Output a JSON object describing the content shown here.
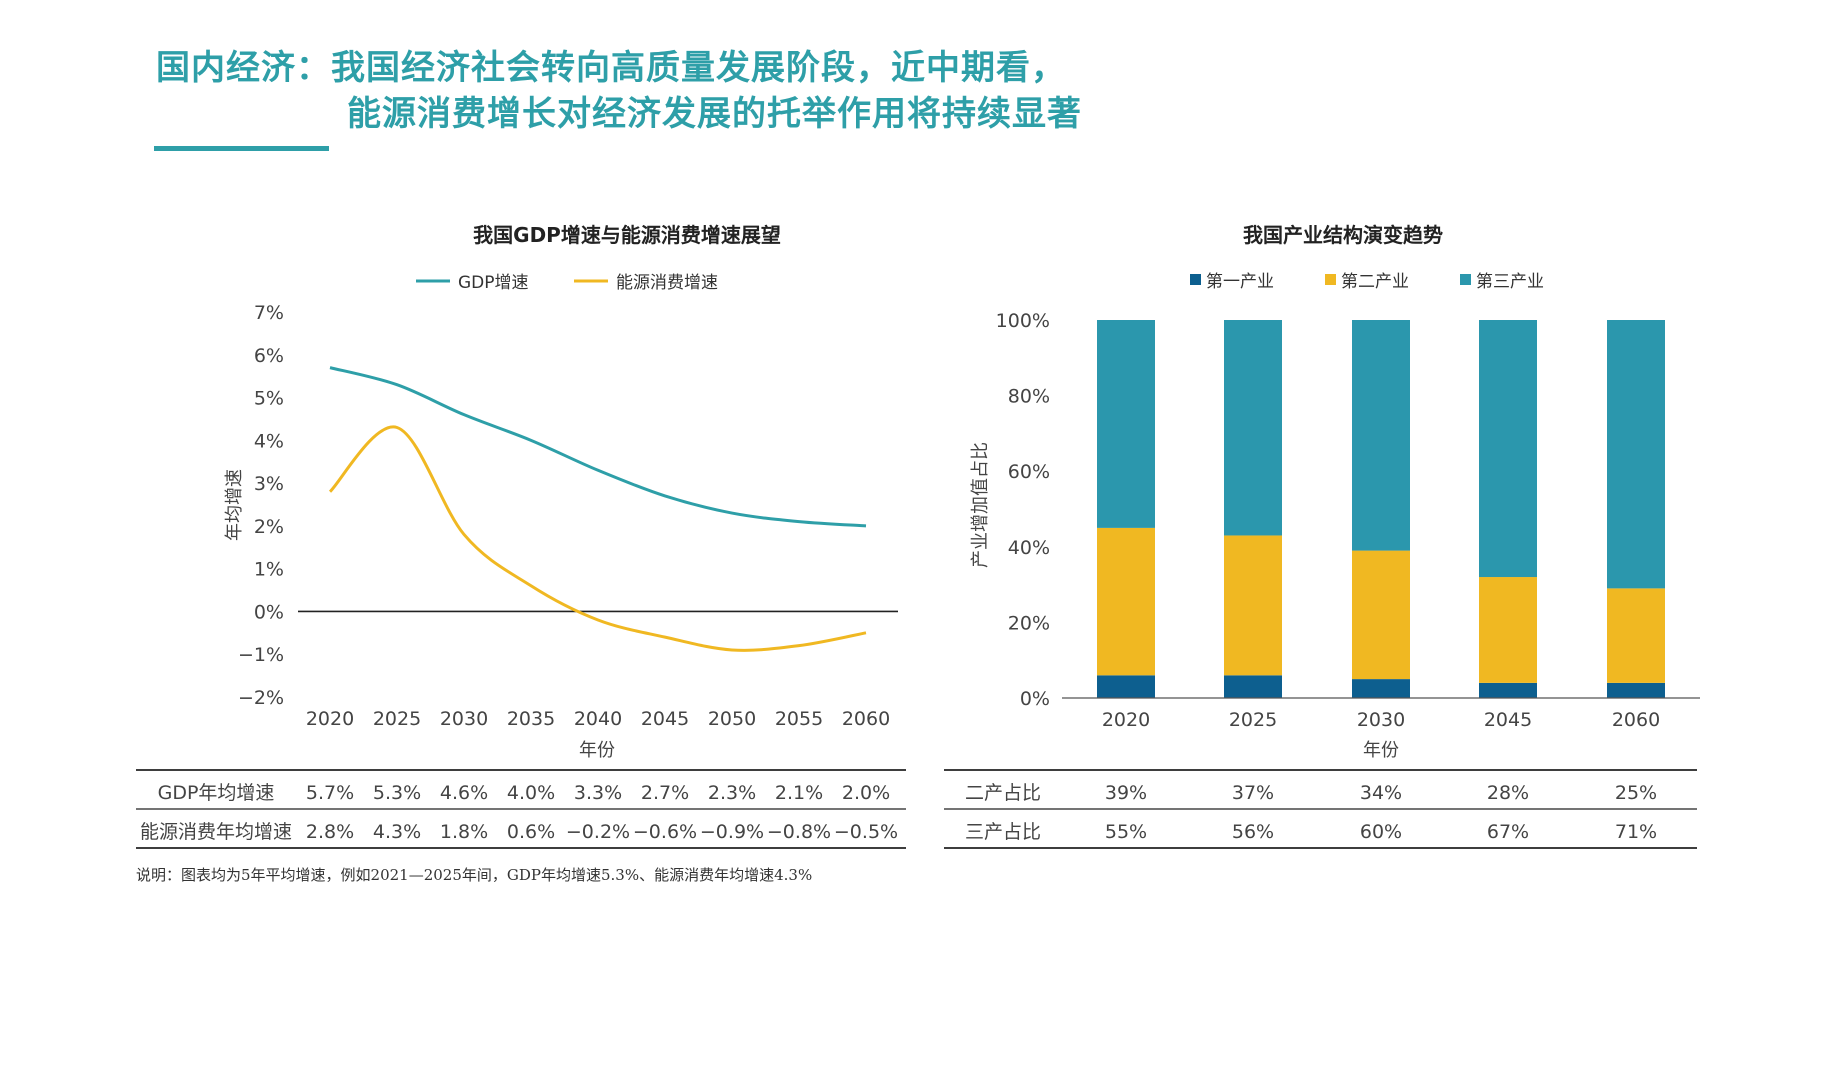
{
  "page": {
    "title_line1": "国内经济：我国经济社会转向高质量发展阶段，近中期看，",
    "title_line2": "能源消费增长对经济发展的托举作用将持续显著",
    "note": "说明：图表均为5年平均增速，例如2021—2025年间，GDP年均增速5.3%、能源消费年均增速4.3%",
    "accent_color": "#2e9fa8"
  },
  "chart_data": [
    {
      "type": "line",
      "title": "我国GDP增速与能源消费增速展望",
      "xlabel": "年份",
      "ylabel": "年均增速",
      "x": [
        "2020",
        "2025",
        "2030",
        "2035",
        "2040",
        "2045",
        "2050",
        "2055",
        "2060"
      ],
      "y_ticks": [
        "7%",
        "6%",
        "5%",
        "4%",
        "3%",
        "2%",
        "1%",
        "0%",
        "−1%",
        "−2%"
      ],
      "ylim": [
        -2,
        7
      ],
      "legend_position": "top",
      "series": [
        {
          "name": "GDP增速",
          "color": "#2e9fa8",
          "values": [
            5.7,
            5.3,
            4.6,
            4.0,
            3.3,
            2.7,
            2.3,
            2.1,
            2.0
          ]
        },
        {
          "name": "能源消费增速",
          "color": "#f0b822",
          "values": [
            2.8,
            4.3,
            1.8,
            0.6,
            -0.2,
            -0.6,
            -0.9,
            -0.8,
            -0.5
          ]
        }
      ],
      "table": {
        "rows": [
          {
            "label": "GDP年均增速",
            "values": [
              "5.7%",
              "5.3%",
              "4.6%",
              "4.0%",
              "3.3%",
              "2.7%",
              "2.3%",
              "2.1%",
              "2.0%"
            ]
          },
          {
            "label": "能源消费年均增速",
            "values": [
              "2.8%",
              "4.3%",
              "1.8%",
              "0.6%",
              "−0.2%",
              "−0.6%",
              "−0.9%",
              "−0.8%",
              "−0.5%"
            ]
          }
        ]
      }
    },
    {
      "type": "bar",
      "stacked": true,
      "title": "我国产业结构演变趋势",
      "xlabel": "年份",
      "ylabel": "产业增加值占比",
      "categories": [
        "2020",
        "2025",
        "2030",
        "2045",
        "2060"
      ],
      "y_ticks": [
        "0%",
        "20%",
        "40%",
        "60%",
        "80%",
        "100%"
      ],
      "ylim": [
        0,
        100
      ],
      "legend_position": "top",
      "series": [
        {
          "name": "第一产业",
          "color": "#0d5f8f",
          "values": [
            6,
            6,
            5,
            4,
            4
          ]
        },
        {
          "name": "第二产业",
          "color": "#f0b822",
          "values": [
            39,
            37,
            34,
            28,
            25
          ]
        },
        {
          "name": "第三产业",
          "color": "#2b97ad",
          "values": [
            55,
            56,
            60,
            67,
            71
          ]
        }
      ],
      "table": {
        "rows": [
          {
            "label": "二产占比",
            "values": [
              "39%",
              "37%",
              "34%",
              "28%",
              "25%"
            ]
          },
          {
            "label": "三产占比",
            "values": [
              "55%",
              "56%",
              "60%",
              "67%",
              "71%"
            ]
          }
        ]
      }
    }
  ]
}
